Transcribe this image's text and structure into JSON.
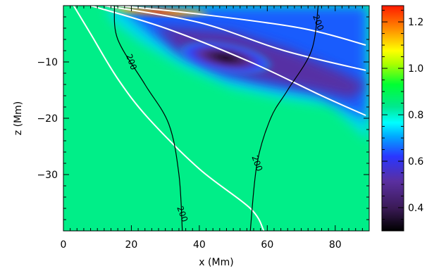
{
  "chart_data": {
    "type": "heatmap",
    "title": "",
    "xlabel": "x (Mm)",
    "ylabel": "z (Mm)",
    "xlim": [
      0,
      90
    ],
    "ylim": [
      -40,
      0
    ],
    "x_ticks": [
      0,
      20,
      40,
      60,
      80
    ],
    "y_ticks": [
      -10,
      -20,
      -30
    ],
    "grid": false,
    "colorbar": {
      "min": 0.3,
      "max": 1.27,
      "ticks": [
        0.4,
        0.6,
        0.8,
        1.0,
        1.2
      ],
      "colormap": "rainbow",
      "position": "right"
    },
    "background_value": 0.78,
    "features": [
      {
        "name": "low-value-band",
        "description_value": 0.3,
        "center": [
          48,
          -9
        ]
      },
      {
        "name": "high-value-streak",
        "value": 1.25,
        "x_range": [
          14,
          34
        ],
        "z": -1.5
      }
    ],
    "contours": [
      {
        "label": "200",
        "color": "#000000",
        "points": [
          [
            15,
            0
          ],
          [
            16,
            -6
          ],
          [
            24,
            -14
          ],
          [
            31,
            -21
          ],
          [
            34,
            -30
          ],
          [
            35,
            -40
          ]
        ],
        "label_positions": [
          [
            20,
            -10
          ],
          [
            35,
            -37
          ]
        ]
      },
      {
        "label": "200",
        "color": "#000000",
        "points": [
          [
            75,
            0
          ],
          [
            73,
            -8
          ],
          [
            66,
            -15
          ],
          [
            61,
            -20
          ],
          [
            57,
            -28
          ],
          [
            55,
            -40
          ]
        ],
        "label_positions": [
          [
            75,
            -3
          ],
          [
            57,
            -28
          ]
        ]
      }
    ],
    "white_lines": [
      [
        [
          3,
          0
        ],
        [
          8,
          -5
        ],
        [
          16,
          -13
        ],
        [
          25,
          -20
        ],
        [
          40,
          -29
        ],
        [
          55,
          -36
        ],
        [
          59,
          -40
        ]
      ],
      [
        [
          8,
          0
        ],
        [
          30,
          -4
        ],
        [
          55,
          -10
        ],
        [
          76,
          -16
        ],
        [
          89,
          -19.5
        ]
      ],
      [
        [
          12,
          0
        ],
        [
          40,
          -3
        ],
        [
          65,
          -8
        ],
        [
          89,
          -11.5
        ]
      ],
      [
        [
          16,
          0
        ],
        [
          40,
          -1.5
        ],
        [
          70,
          -4
        ],
        [
          89,
          -7
        ]
      ]
    ]
  }
}
